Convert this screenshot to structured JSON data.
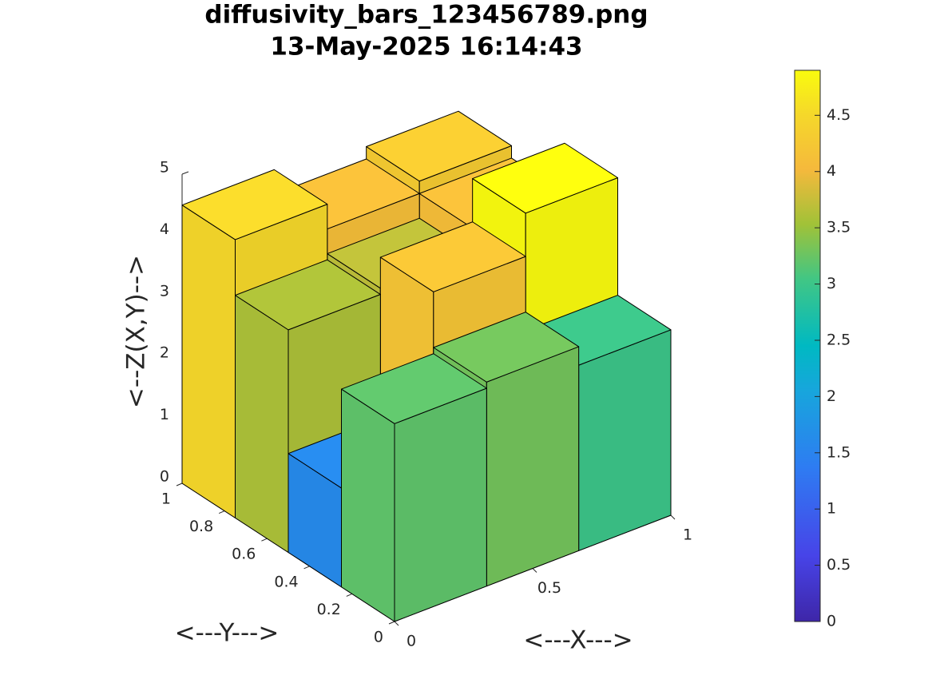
{
  "chart_data": {
    "type": "bar3d",
    "title": [
      "diffusivity_bars_123456789.png",
      "13-May-2025 16:14:43"
    ],
    "xlabel": "<---X--->",
    "ylabel": "<---Y--->",
    "zlabel": "<--Z(X,Y)-->",
    "z": [
      [
        3.2,
        3.3,
        3.0
      ],
      [
        1.6,
        4.2,
        4.9
      ],
      [
        3.6,
        3.7,
        4.1
      ],
      [
        4.5,
        4.1,
        4.3
      ]
    ],
    "xlim": [
      0,
      1
    ],
    "xticks": [
      0,
      0.5,
      1
    ],
    "ylim": [
      0,
      1
    ],
    "yticks": [
      0,
      0.2,
      0.4,
      0.6,
      0.8,
      1
    ],
    "zlim": [
      0,
      5
    ],
    "zticks": [
      0,
      1,
      2,
      3,
      4,
      5
    ],
    "clim": [
      0,
      4.9
    ],
    "cticks": [
      0,
      0.5,
      1,
      1.5,
      2,
      2.5,
      3,
      3.5,
      4,
      4.5
    ],
    "colormap": "parula",
    "colorbar": true
  }
}
